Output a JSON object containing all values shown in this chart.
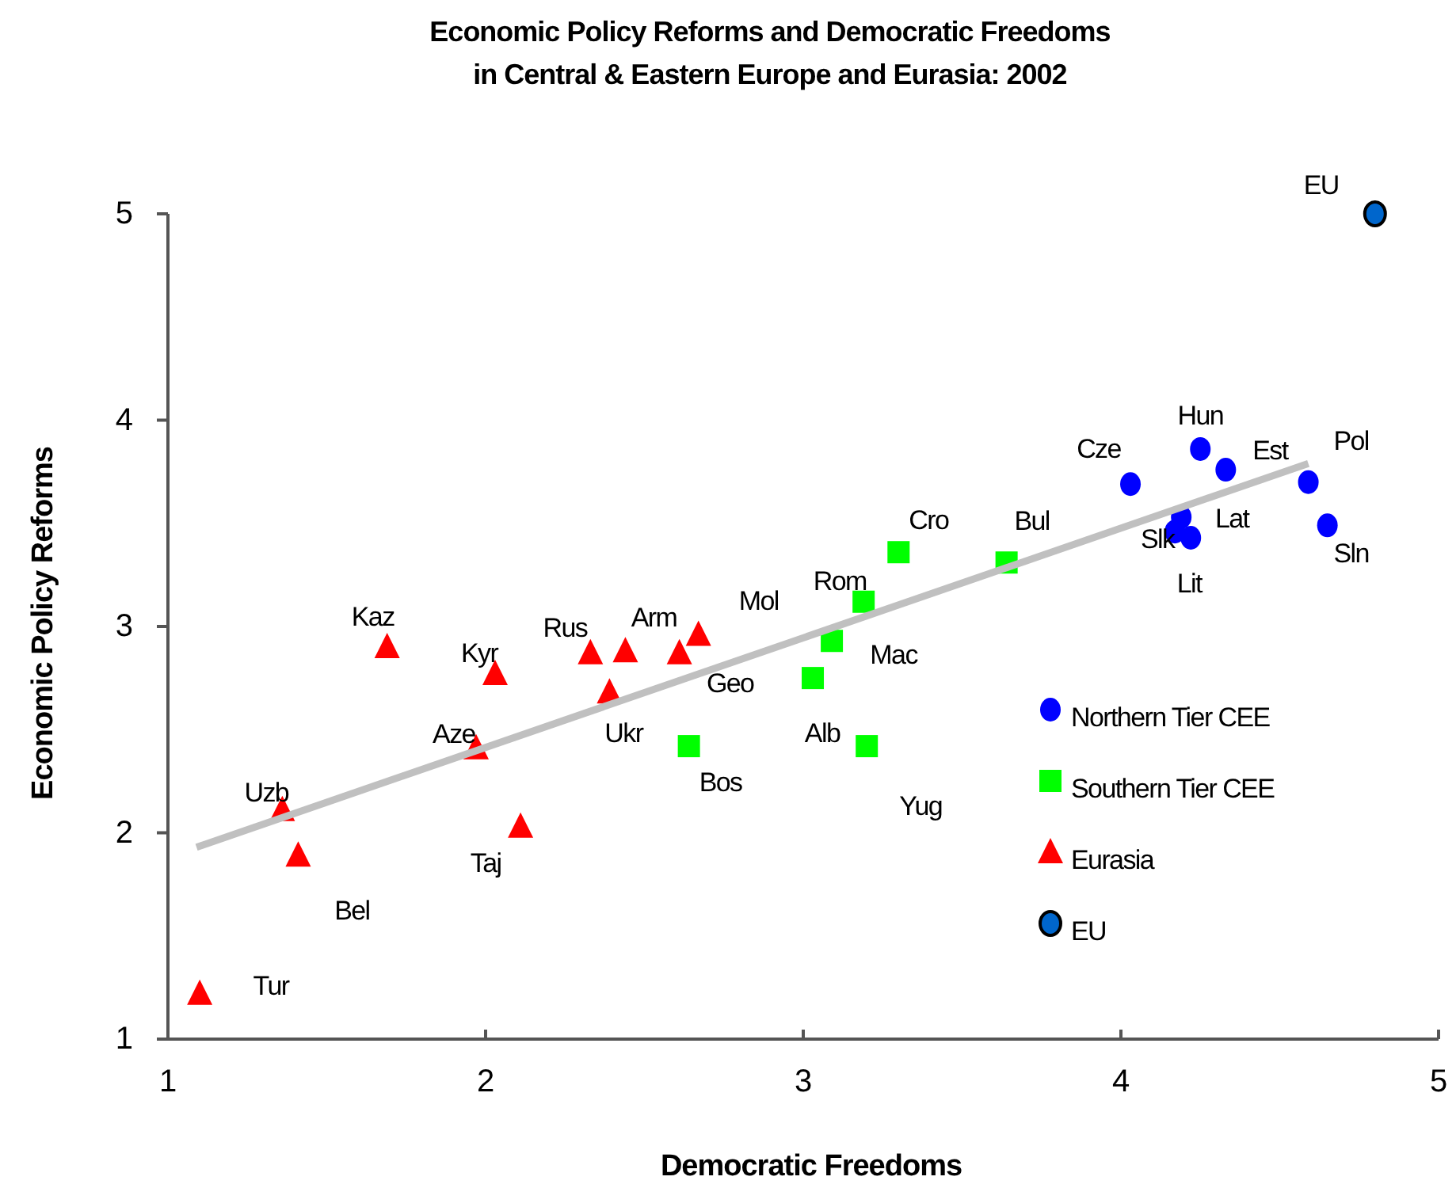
{
  "chart_data": {
    "type": "scatter",
    "title": "Economic Policy Reforms and Democratic Freedoms\nin Central & Eastern Europe and Eurasia: 2002",
    "xlabel": "Democratic Freedoms",
    "ylabel": "Economic Policy Reforms",
    "xlim": [
      1,
      5
    ],
    "ylim": [
      1,
      5
    ],
    "xticks": [
      1,
      2,
      3,
      4,
      5
    ],
    "yticks": [
      1,
      2,
      3,
      4,
      5
    ],
    "grid": false,
    "legend": "right",
    "series": [
      {
        "name": "Northern Tier CEE",
        "color": "#0000ff",
        "marker": "circle",
        "x": [
          4.03,
          4.25,
          4.33,
          4.59,
          4.65,
          4.17,
          4.19,
          4.22
        ],
        "values": [
          3.69,
          3.86,
          3.76,
          3.7,
          3.49,
          3.46,
          3.53,
          3.43
        ],
        "value_labels": [
          "Cze",
          "Hun",
          "Est",
          "Pol",
          "Sln",
          "Slk",
          "Lat",
          "Lit"
        ]
      },
      {
        "name": "Southern Tier CEE",
        "color": "#00ff00",
        "marker": "square",
        "x": [
          3.3,
          3.64,
          3.19,
          3.09,
          3.03,
          2.64,
          3.2
        ],
        "values": [
          3.36,
          3.31,
          3.12,
          2.93,
          2.75,
          2.42,
          2.42
        ],
        "value_labels": [
          "Cro",
          "Bul",
          "Rom",
          "Mac",
          "Alb",
          "Bos",
          "Yug"
        ]
      },
      {
        "name": "Eurasia",
        "color": "#ff0000",
        "marker": "triangle",
        "x": [
          1.69,
          2.03,
          2.33,
          2.44,
          2.61,
          2.67,
          2.39,
          1.97,
          1.36,
          1.41,
          2.11,
          1.1
        ],
        "values": [
          2.9,
          2.77,
          2.87,
          2.88,
          2.87,
          2.96,
          2.68,
          2.41,
          2.11,
          1.89,
          2.03,
          1.22
        ],
        "value_labels": [
          "Kaz",
          "Kyr",
          "Rus",
          "Arm",
          "Geo",
          "Mol",
          "Ukr",
          "Aze",
          "Uzb",
          "Bel",
          "Taj",
          "Tur"
        ]
      },
      {
        "name": "EU",
        "color": "#0066cc",
        "marker": "circle",
        "x": [
          4.8
        ],
        "values": [
          5
        ],
        "value_labels": [
          "EU"
        ]
      },
      {
        "type": "line",
        "color": "#c0c0c0",
        "x": [
          1.09,
          4.59
        ],
        "values": [
          1.93,
          3.79
        ]
      }
    ]
  }
}
